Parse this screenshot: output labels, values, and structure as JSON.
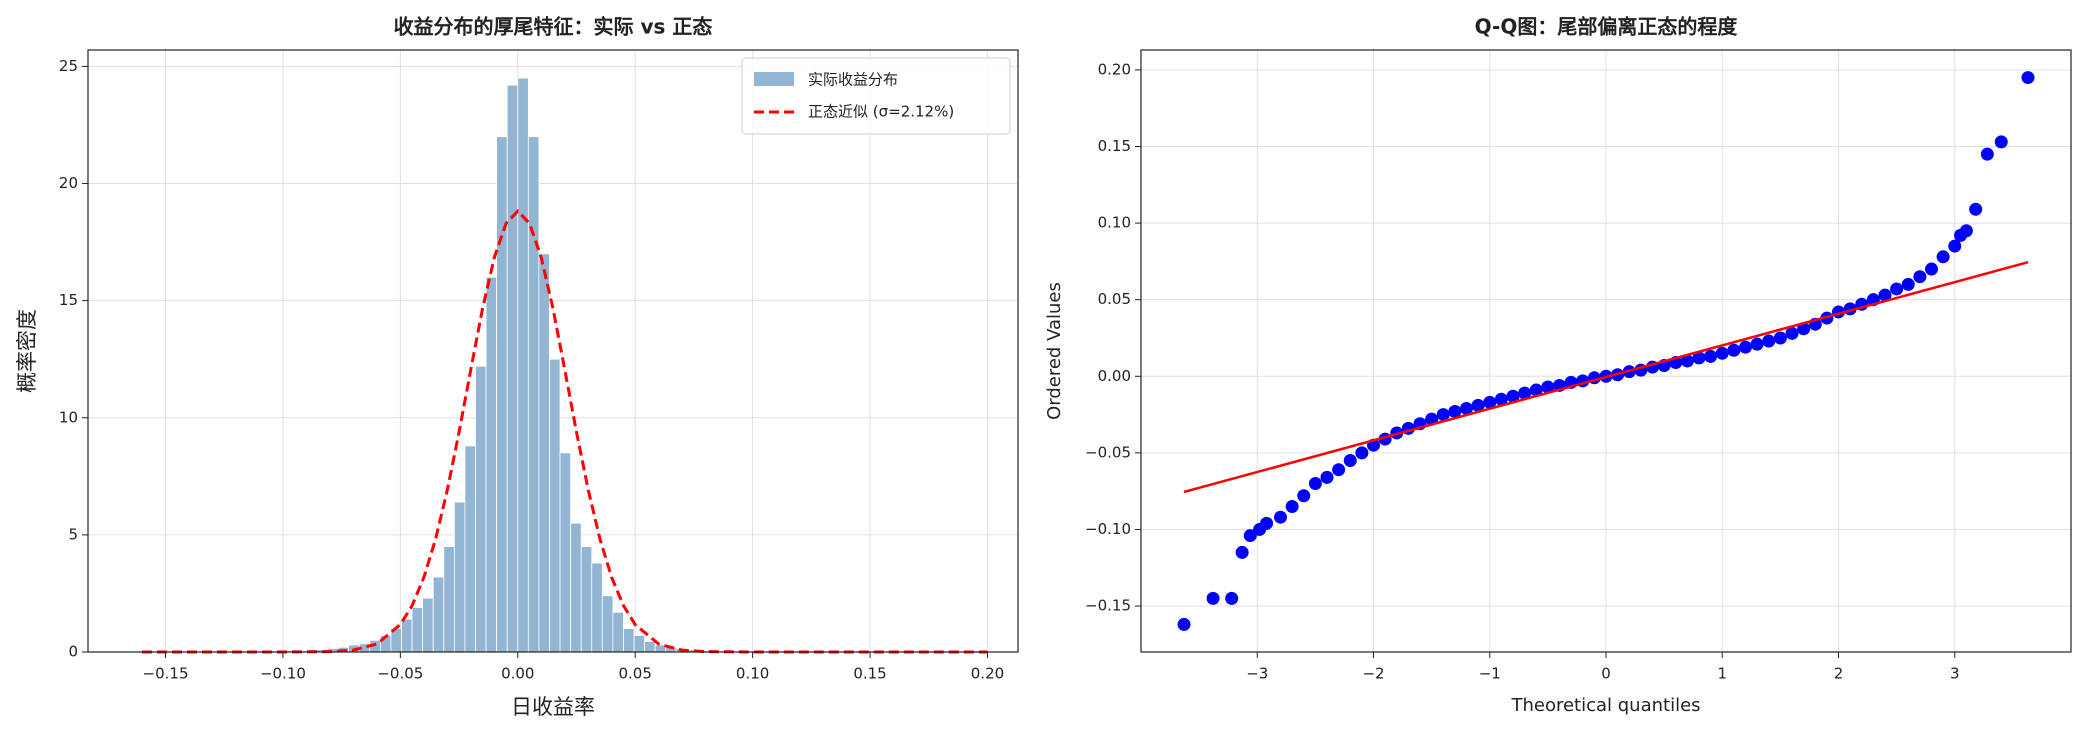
{
  "chart_data": [
    {
      "type": "histogram",
      "title": "收益分布的厚尾特征：实际 vs 正态",
      "xlabel": "日收益率",
      "ylabel": "概率密度",
      "name": "实际收益分布",
      "color": "#92b5d4",
      "grid": true,
      "legend": "upper right",
      "bins": [
        -0.162,
        -0.1575,
        -0.153,
        -0.1485,
        -0.144,
        -0.1395,
        -0.135,
        -0.1305,
        -0.126,
        -0.1215,
        -0.117,
        -0.1125,
        -0.108,
        -0.1035,
        -0.099,
        -0.0945,
        -0.09,
        -0.0855,
        -0.081,
        -0.0765,
        -0.072,
        -0.0675,
        -0.063,
        -0.0585,
        -0.054,
        -0.0495,
        -0.045,
        -0.0405,
        -0.036,
        -0.0315,
        -0.027,
        -0.0225,
        -0.018,
        -0.0135,
        -0.009,
        -0.0045,
        0,
        0.0045,
        0.009,
        0.0135,
        0.018,
        0.0225,
        0.027,
        0.0315,
        0.036,
        0.0405,
        0.045,
        0.0495,
        0.054,
        0.0585,
        0.063,
        0.0675,
        0.072,
        0.0765,
        0.081,
        0.0855,
        0.09,
        0.0945,
        0.099,
        0.1035,
        0.108,
        0.1125,
        0.117,
        0.1215,
        0.126,
        0.1305,
        0.135,
        0.1395,
        0.144,
        0.1485,
        0.153,
        0.1575,
        0.162,
        0.1665,
        0.171,
        0.1755,
        0.18,
        0.1845,
        0.189,
        0.1935,
        0.198
      ],
      "values": [
        0.05,
        0,
        0,
        0,
        0,
        0,
        0,
        0,
        0,
        0,
        0,
        0,
        0.05,
        0.05,
        0.05,
        0.05,
        0.1,
        0.1,
        0.15,
        0.2,
        0.3,
        0.35,
        0.5,
        0.7,
        1.0,
        1.4,
        1.9,
        2.3,
        3.2,
        4.5,
        6.4,
        8.8,
        12.2,
        16.0,
        22.0,
        24.2,
        24.5,
        22.0,
        17.0,
        12.5,
        8.5,
        5.5,
        4.5,
        3.8,
        2.4,
        1.7,
        1.0,
        0.7,
        0.45,
        0.3,
        0.2,
        0.15,
        0.1,
        0.05,
        0,
        0,
        0,
        0,
        0,
        0,
        0,
        0,
        0,
        0,
        0,
        0,
        0,
        0,
        0.05,
        0.05,
        0,
        0,
        0,
        0,
        0,
        0,
        0,
        0,
        0,
        0.05
      ],
      "curve": {
        "name": "正态近似 (σ=2.12%)",
        "color": "#ff0000",
        "x": [
          -0.16,
          -0.1,
          -0.08,
          -0.07,
          -0.06,
          -0.05,
          -0.045,
          -0.04,
          -0.035,
          -0.03,
          -0.025,
          -0.02,
          -0.015,
          -0.01,
          -0.005,
          0,
          0.005,
          0.01,
          0.015,
          0.02,
          0.025,
          0.03,
          0.035,
          0.04,
          0.045,
          0.05,
          0.06,
          0.07,
          0.08,
          0.1,
          0.2
        ],
        "values": [
          0,
          0,
          0.015,
          0.08,
          0.34,
          1.17,
          1.98,
          3.18,
          4.82,
          6.92,
          9.39,
          12.06,
          14.66,
          16.84,
          18.3,
          18.82,
          18.3,
          16.84,
          14.66,
          12.06,
          9.39,
          6.92,
          4.82,
          3.18,
          1.98,
          1.17,
          0.34,
          0.08,
          0.015,
          0,
          0
        ]
      },
      "xlim": [
        -0.183,
        0.213
      ],
      "ylim": [
        0,
        25.7
      ],
      "xticks": [
        {
          "value": -0.15,
          "label": "−0.15"
        },
        {
          "value": -0.1,
          "label": "−0.10"
        },
        {
          "value": -0.05,
          "label": "−0.05"
        },
        {
          "value": 0,
          "label": "0.00"
        },
        {
          "value": 0.05,
          "label": "0.05"
        },
        {
          "value": 0.1,
          "label": "0.10"
        },
        {
          "value": 0.15,
          "label": "0.15"
        },
        {
          "value": 0.2,
          "label": "0.20"
        }
      ],
      "yticks": [
        0,
        5,
        10,
        15,
        20,
        25
      ]
    },
    {
      "type": "scatter",
      "title": "Q-Q图：尾部偏离正态的程度",
      "xlabel": "Theoretical quantiles",
      "ylabel": "Ordered Values",
      "color": "#0000ff",
      "grid": true,
      "x": [
        -3.63,
        -3.38,
        -3.22,
        -3.13,
        -3.06,
        -2.98,
        -2.92,
        -2.8,
        -2.7,
        -2.6,
        -2.5,
        -2.4,
        -2.3,
        -2.2,
        -2.1,
        -2.0,
        -1.9,
        -1.8,
        -1.7,
        -1.6,
        -1.5,
        -1.4,
        -1.3,
        -1.2,
        -1.1,
        -1.0,
        -0.9,
        -0.8,
        -0.7,
        -0.6,
        -0.5,
        -0.4,
        -0.3,
        -0.2,
        -0.1,
        0,
        0.1,
        0.2,
        0.3,
        0.4,
        0.5,
        0.6,
        0.7,
        0.8,
        0.9,
        1.0,
        1.1,
        1.2,
        1.3,
        1.4,
        1.5,
        1.6,
        1.7,
        1.8,
        1.9,
        2.0,
        2.1,
        2.2,
        2.3,
        2.4,
        2.5,
        2.6,
        2.7,
        2.8,
        2.9,
        3.0,
        3.05,
        3.1,
        3.18,
        3.28,
        3.4,
        3.63
      ],
      "values": [
        -0.162,
        -0.145,
        -0.145,
        -0.115,
        -0.104,
        -0.1,
        -0.096,
        -0.092,
        -0.085,
        -0.078,
        -0.07,
        -0.066,
        -0.061,
        -0.055,
        -0.05,
        -0.045,
        -0.041,
        -0.037,
        -0.034,
        -0.031,
        -0.028,
        -0.025,
        -0.023,
        -0.021,
        -0.019,
        -0.017,
        -0.015,
        -0.013,
        -0.011,
        -0.009,
        -0.007,
        -0.006,
        -0.004,
        -0.003,
        -0.001,
        0,
        0.001,
        0.003,
        0.004,
        0.006,
        0.007,
        0.009,
        0.01,
        0.012,
        0.013,
        0.015,
        0.017,
        0.019,
        0.021,
        0.023,
        0.025,
        0.028,
        0.031,
        0.034,
        0.038,
        0.042,
        0.044,
        0.047,
        0.05,
        0.053,
        0.057,
        0.06,
        0.065,
        0.07,
        0.078,
        0.085,
        0.092,
        0.095,
        0.109,
        0.145,
        0.153,
        0.195
      ],
      "fit_line": {
        "color": "#ff0000",
        "x": [
          -3.63,
          3.63
        ],
        "values": [
          -0.0755,
          0.0745
        ]
      },
      "xlim": [
        -4.0,
        4.0
      ],
      "ylim": [
        -0.18,
        0.213
      ],
      "xticks": [
        {
          "value": -3,
          "label": "−3"
        },
        {
          "value": -2,
          "label": "−2"
        },
        {
          "value": -1,
          "label": "−1"
        },
        0,
        1,
        2,
        3
      ],
      "yticks": [
        {
          "value": -0.15,
          "label": "−0.15"
        },
        {
          "value": -0.1,
          "label": "−0.10"
        },
        {
          "value": -0.05,
          "label": "−0.05"
        },
        {
          "value": 0,
          "label": "0.00"
        },
        {
          "value": 0.05,
          "label": "0.05"
        },
        {
          "value": 0.1,
          "label": "0.10"
        },
        {
          "value": 0.15,
          "label": "0.15"
        },
        {
          "value": 0.2,
          "label": "0.20"
        }
      ]
    }
  ]
}
